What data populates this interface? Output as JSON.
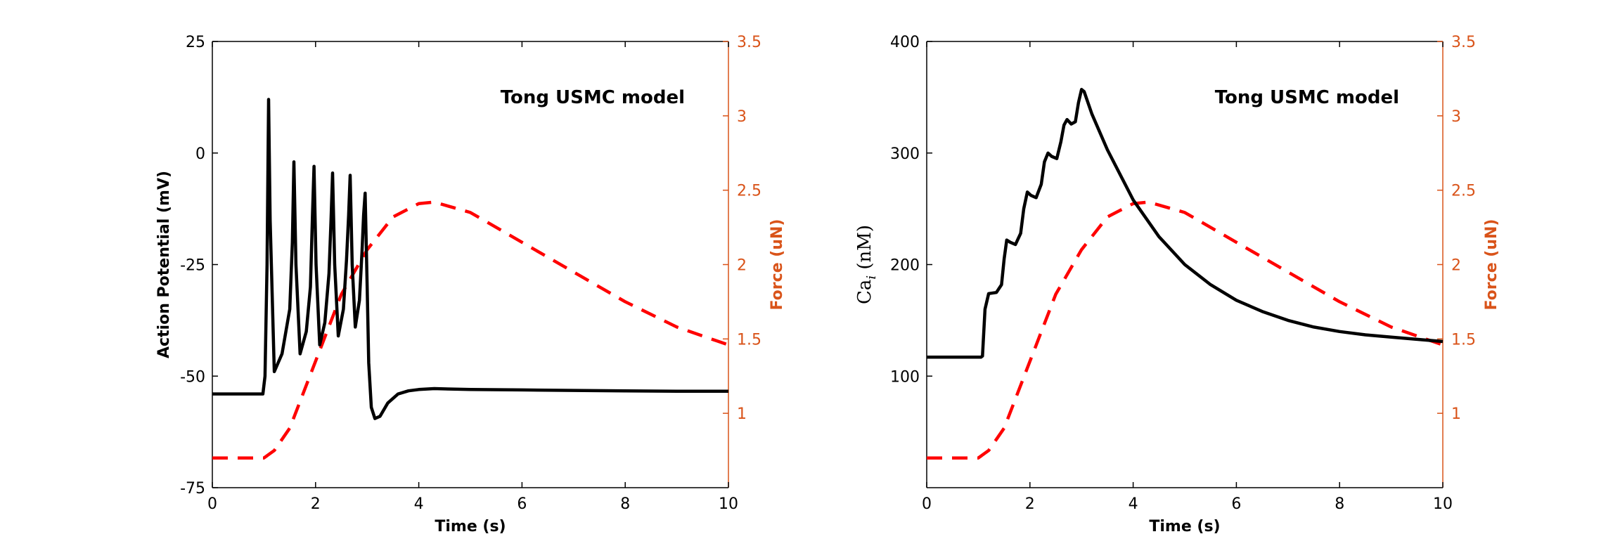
{
  "colors": {
    "left_axis": "#000000",
    "right_axis": "#D95319",
    "dashed": "#FF0000",
    "solid": "#000000"
  },
  "chart_data": [
    {
      "type": "line",
      "annotation": "Tong USMC model",
      "xlabel": "Time (s)",
      "ylabel_left": "Action Potential (mV)",
      "ylabel_right": "Force (uN)",
      "xlim": [
        0,
        10
      ],
      "ylim_left": [
        -75,
        25
      ],
      "ylim_right": [
        0.5,
        3.5
      ],
      "xticks": [
        "0",
        "2",
        "4",
        "6",
        "8",
        "10"
      ],
      "yticks_left": [
        "-75",
        "-50",
        "-25",
        "0",
        "25"
      ],
      "yticks_right": [
        "1",
        "1.5",
        "2",
        "2.5",
        "3",
        "3.5"
      ],
      "series": [
        {
          "axis": "left",
          "style": "solid",
          "x": [
            0,
            0.98,
            1.02,
            1.06,
            1.09,
            1.12,
            1.2,
            1.35,
            1.5,
            1.55,
            1.58,
            1.62,
            1.7,
            1.82,
            1.9,
            1.94,
            1.97,
            2.01,
            2.08,
            2.18,
            2.26,
            2.3,
            2.33,
            2.37,
            2.44,
            2.54,
            2.6,
            2.64,
            2.67,
            2.71,
            2.77,
            2.85,
            2.9,
            2.93,
            2.96,
            3.0,
            3.03,
            3.08,
            3.15,
            3.25,
            3.4,
            3.6,
            3.8,
            4.0,
            4.3,
            5.0,
            6.0,
            7.0,
            8.0,
            9.0,
            10
          ],
          "y": [
            -54,
            -54,
            -50,
            -25,
            12,
            -15,
            -49,
            -45,
            -35,
            -20,
            -2,
            -25,
            -45,
            -40,
            -30,
            -14,
            -3,
            -25,
            -43,
            -38,
            -27,
            -15,
            -4.5,
            -25,
            -41,
            -35,
            -24,
            -14,
            -5,
            -25,
            -39,
            -33,
            -22,
            -14,
            -9,
            -30,
            -47,
            -57,
            -59.5,
            -59,
            -56,
            -54,
            -53.3,
            -53,
            -52.8,
            -53,
            -53.1,
            -53.2,
            -53.3,
            -53.4,
            -53.4
          ]
        },
        {
          "axis": "right",
          "style": "dashed",
          "x": [
            0,
            1.0,
            1.2,
            1.5,
            2.0,
            2.5,
            3.0,
            3.5,
            4.0,
            4.3,
            5.0,
            6.0,
            7.0,
            8.0,
            9.0,
            10
          ],
          "y": [
            0.7,
            0.7,
            0.75,
            0.9,
            1.35,
            1.8,
            2.1,
            2.32,
            2.41,
            2.42,
            2.35,
            2.15,
            1.95,
            1.75,
            1.58,
            1.46
          ]
        }
      ]
    },
    {
      "type": "line",
      "annotation": "Tong USMC model",
      "xlabel": "Time (s)",
      "ylabel_left": "Ca",
      "ylabel_left_subscript": "i",
      "ylabel_left_suffix": " (nM)",
      "ylabel_right": "Force (uN)",
      "xlim": [
        0,
        10
      ],
      "ylim_left": [
        0,
        400
      ],
      "ylim_right": [
        0.5,
        3.5
      ],
      "xticks": [
        "0",
        "2",
        "4",
        "6",
        "8",
        "10"
      ],
      "yticks_left": [
        "100",
        "200",
        "300",
        "400"
      ],
      "yticks_right": [
        "1",
        "1.5",
        "2",
        "2.5",
        "3",
        "3.5"
      ],
      "series": [
        {
          "axis": "left",
          "style": "solid",
          "x": [
            0,
            1.05,
            1.08,
            1.13,
            1.2,
            1.35,
            1.45,
            1.5,
            1.55,
            1.62,
            1.72,
            1.82,
            1.88,
            1.95,
            2.02,
            2.12,
            2.22,
            2.28,
            2.35,
            2.42,
            2.52,
            2.6,
            2.66,
            2.72,
            2.8,
            2.88,
            2.94,
            3.0,
            3.05,
            3.2,
            3.5,
            4.0,
            4.5,
            5.0,
            5.5,
            6.0,
            6.5,
            7.0,
            7.5,
            8.0,
            8.5,
            9.0,
            9.5,
            10
          ],
          "y": [
            117,
            117,
            118,
            160,
            174,
            175,
            182,
            205,
            222,
            220,
            218,
            228,
            250,
            265,
            262,
            260,
            272,
            292,
            300,
            297,
            295,
            310,
            325,
            330,
            326,
            328,
            345,
            357,
            355,
            335,
            303,
            258,
            225,
            200,
            182,
            168,
            158,
            150,
            144,
            140,
            137,
            135,
            133,
            131
          ]
        },
        {
          "axis": "right",
          "style": "dashed",
          "x": [
            0,
            1.0,
            1.2,
            1.5,
            2.0,
            2.5,
            3.0,
            3.5,
            4.0,
            4.3,
            5.0,
            6.0,
            7.0,
            8.0,
            9.0,
            10
          ],
          "y": [
            0.7,
            0.7,
            0.75,
            0.9,
            1.35,
            1.8,
            2.1,
            2.32,
            2.41,
            2.42,
            2.35,
            2.15,
            1.95,
            1.75,
            1.58,
            1.46
          ]
        }
      ]
    }
  ]
}
